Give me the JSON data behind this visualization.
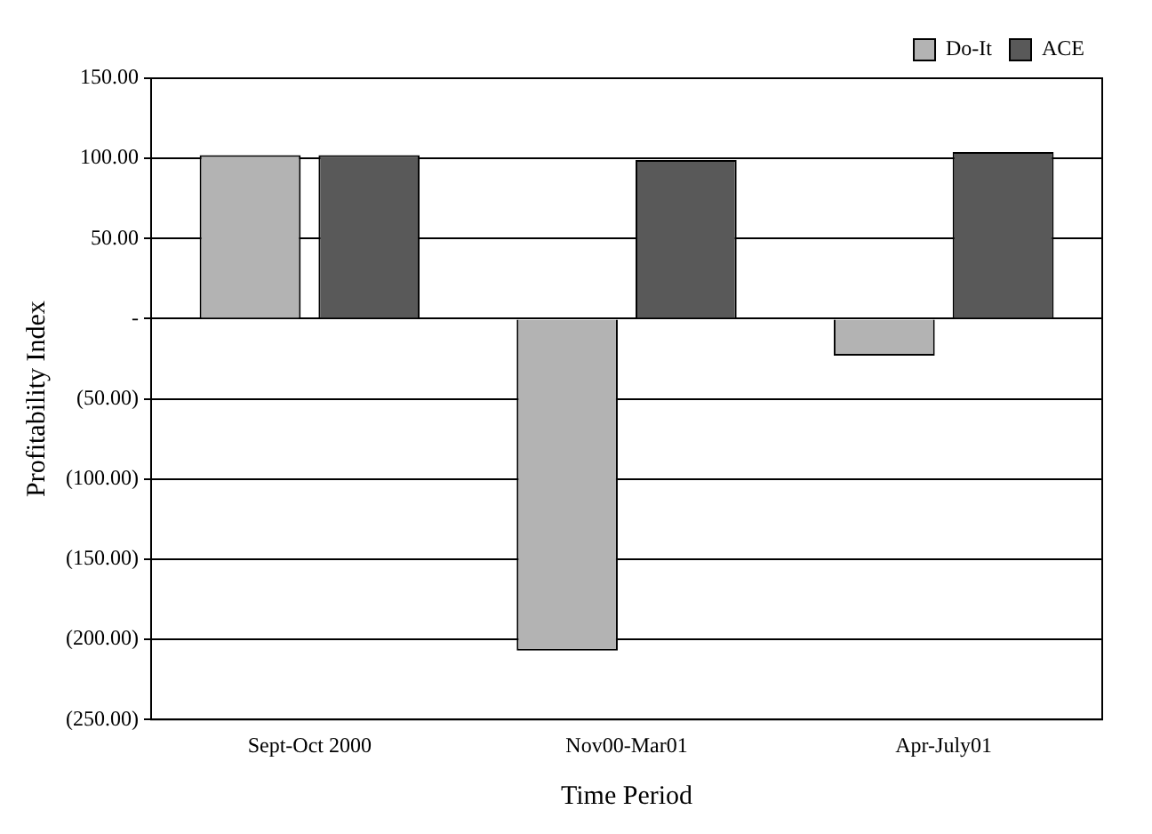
{
  "chart_data": {
    "type": "bar",
    "xlabel": "Time Period",
    "ylabel": "Profitability Index",
    "categories": [
      "Sept-Oct 2000",
      "Nov00-Mar01",
      "Apr-July01"
    ],
    "series": [
      {
        "name": "Do-It",
        "color": "#b3b3b3",
        "values": [
          102,
          -207,
          -23
        ]
      },
      {
        "name": "ACE",
        "color": "#595959",
        "values": [
          102,
          99,
          104
        ]
      }
    ],
    "ylim": [
      -250,
      150
    ],
    "yticks": [
      {
        "value": 150,
        "label": "150.00"
      },
      {
        "value": 100,
        "label": "100.00"
      },
      {
        "value": 50,
        "label": "50.00"
      },
      {
        "value": 0,
        "label": "-"
      },
      {
        "value": -50,
        "label": "(50.00)"
      },
      {
        "value": -100,
        "label": "(100.00)"
      },
      {
        "value": -150,
        "label": "(150.00)"
      },
      {
        "value": -200,
        "label": "(200.00)"
      },
      {
        "value": -250,
        "label": "(250.00)"
      }
    ],
    "grid": "y",
    "legend": "top right"
  }
}
